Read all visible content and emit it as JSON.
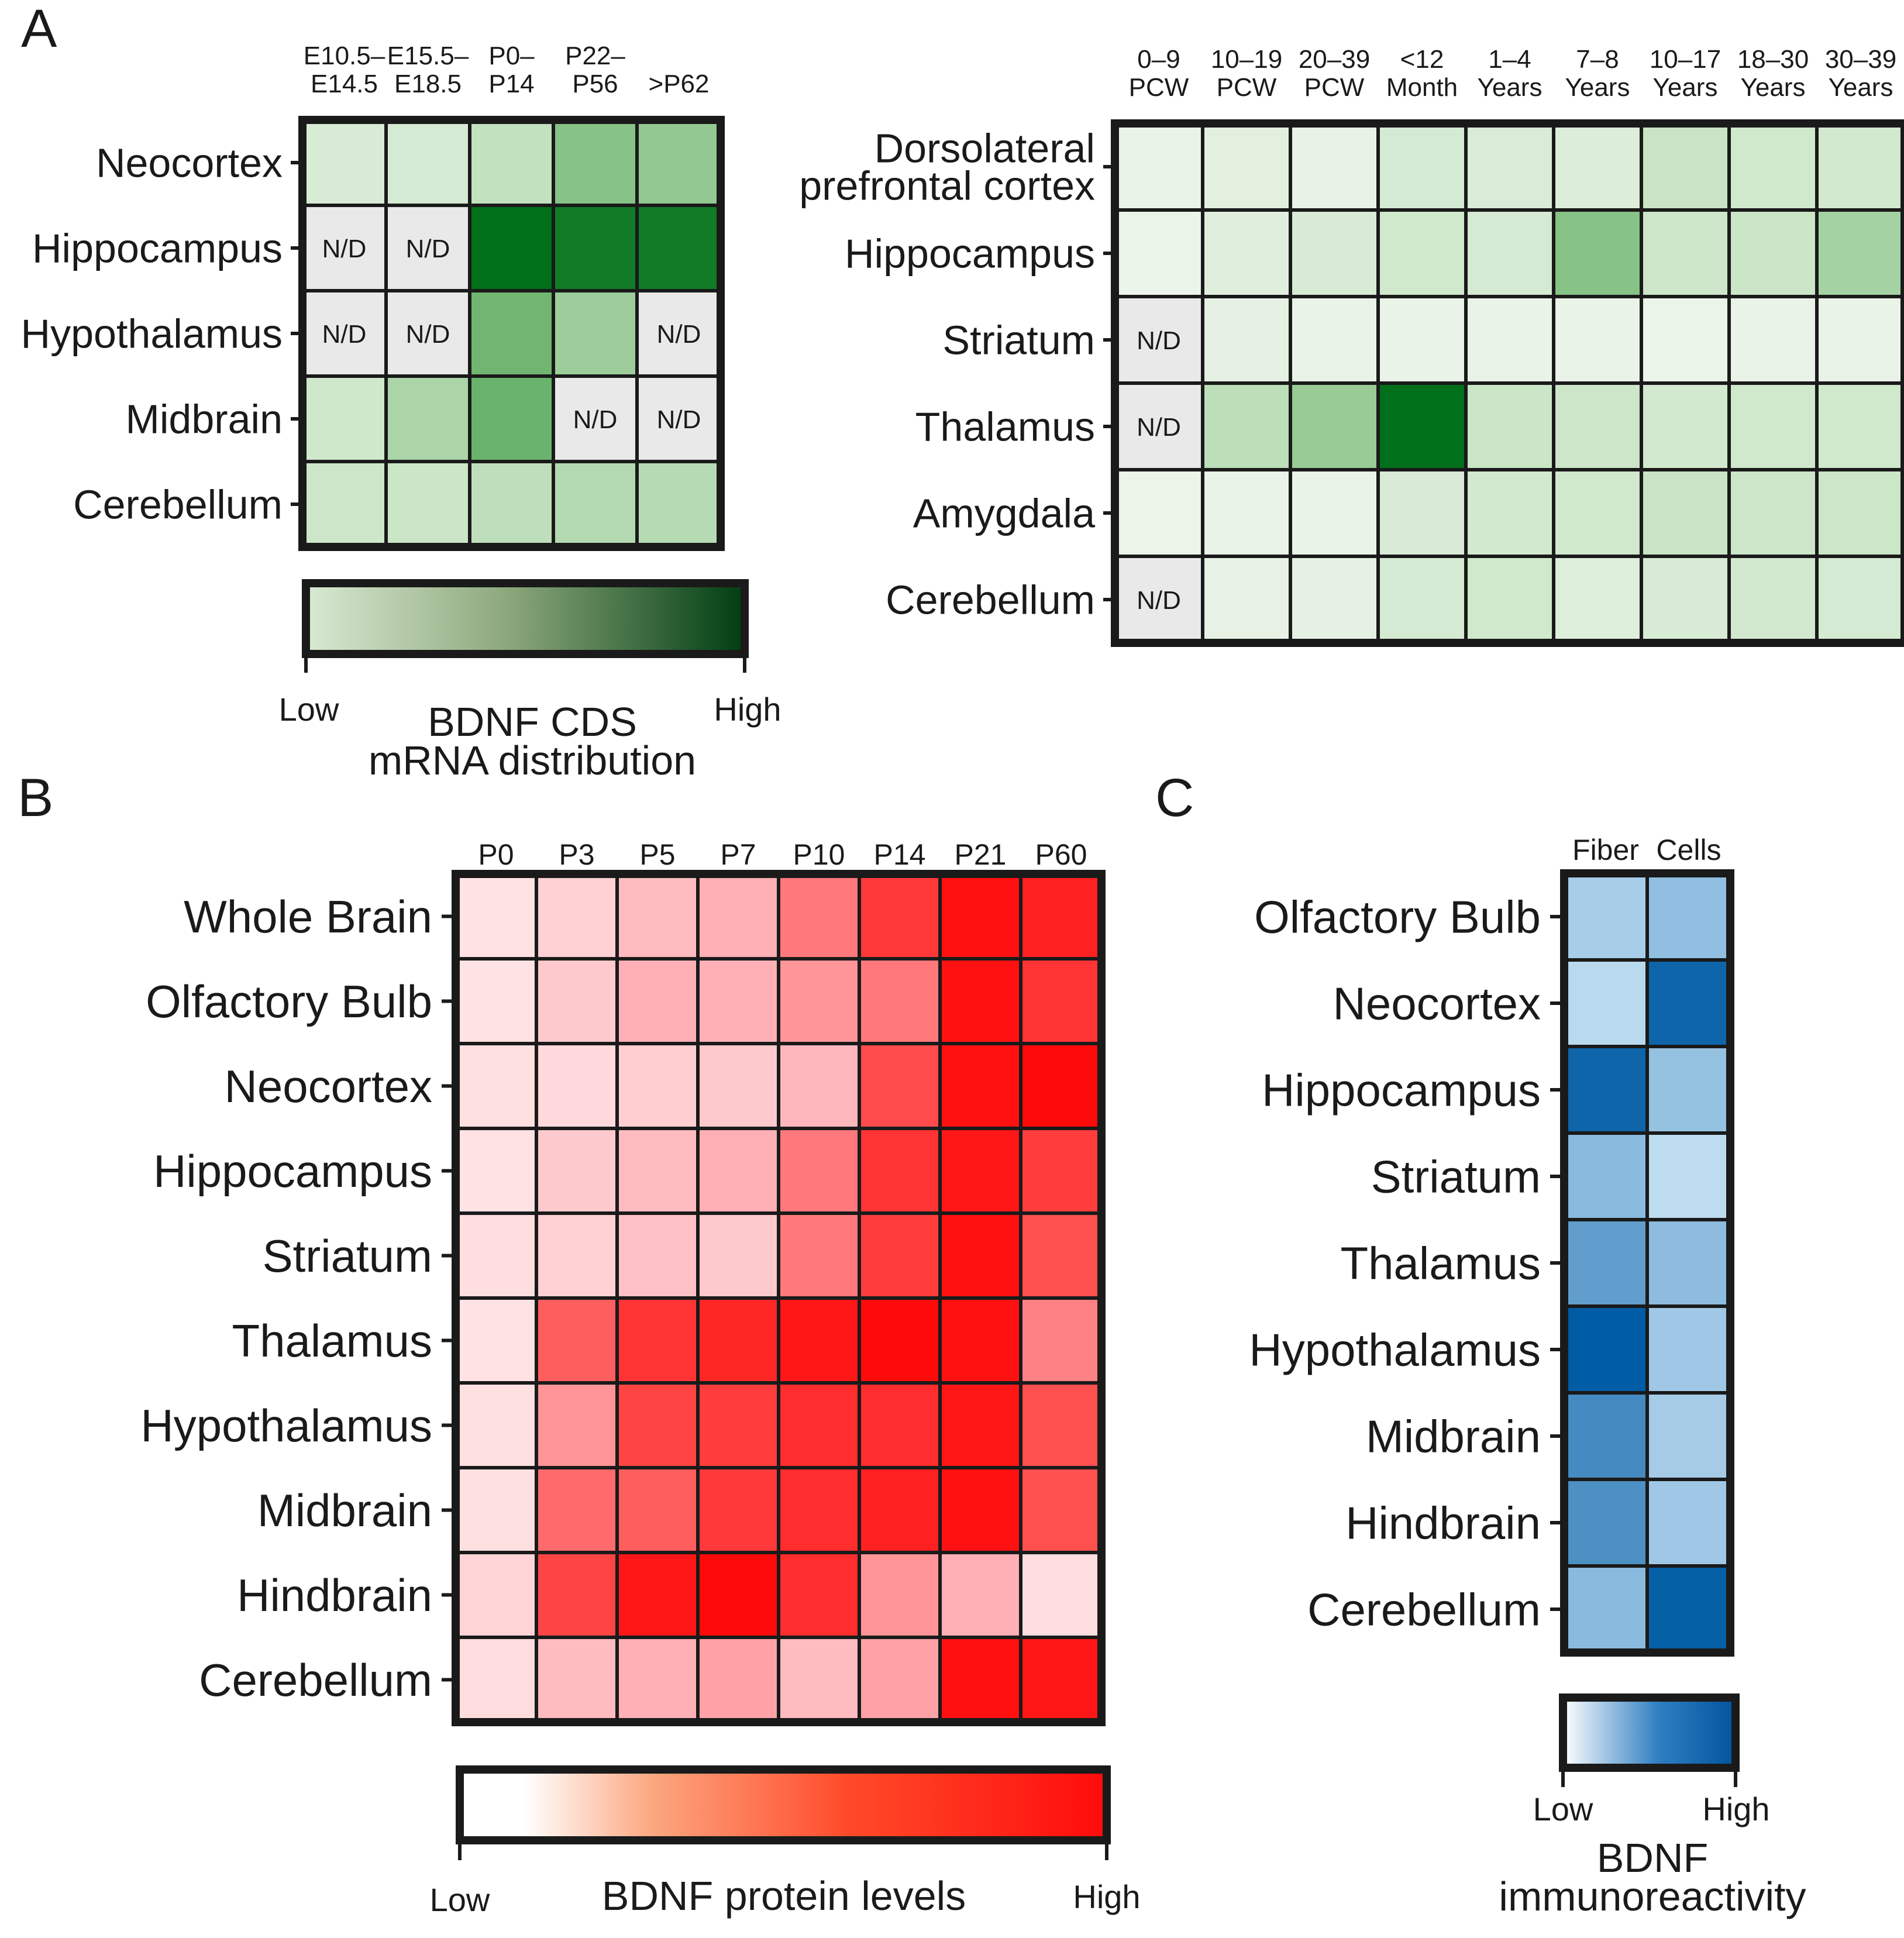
{
  "panel_labels": {
    "a": "A",
    "b": "B",
    "c": "C"
  },
  "nd_label": "N/D",
  "chart_data": [
    {
      "id": "A_mouse",
      "type": "heatmap",
      "title": "",
      "columns": [
        "E10.5–\nE14.5",
        "E15.5–\nE18.5",
        "P0–\nP14",
        "P22–\nP56",
        ">P62"
      ],
      "rows": [
        "Neocortex",
        "Hippocampus",
        "Hypothalamus",
        "Midbrain",
        "Cerebellum"
      ],
      "values": [
        [
          0.18,
          0.2,
          0.32,
          0.52,
          0.48
        ],
        [
          null,
          null,
          1.0,
          0.94,
          0.94
        ],
        [
          null,
          null,
          0.6,
          0.45,
          null
        ],
        [
          0.25,
          0.4,
          0.62,
          null,
          null
        ],
        [
          0.27,
          0.28,
          0.33,
          0.37,
          0.36
        ]
      ],
      "scale": [
        0,
        1
      ],
      "palette": "green"
    },
    {
      "id": "A_human",
      "type": "heatmap",
      "title": "",
      "columns": [
        "0–9\nPCW",
        "10–19\nPCW",
        "20–39\nPCW",
        "<12\nMonth",
        "1–4\nYears",
        "7–8\nYears",
        "10–17\nYears",
        "18–30\nYears",
        "30–39\nYears"
      ],
      "rows": [
        "Dorsolateral\nprefrontal cortex",
        "Hippocampus",
        "Striatum",
        "Thalamus",
        "Amygdala",
        "Cerebellum"
      ],
      "values": [
        [
          0.05,
          0.1,
          0.06,
          0.2,
          0.17,
          0.15,
          0.3,
          0.24,
          0.22
        ],
        [
          0.04,
          0.12,
          0.18,
          0.24,
          0.2,
          0.52,
          0.26,
          0.28,
          0.42
        ],
        [
          null,
          0.08,
          0.05,
          0.05,
          0.05,
          0.05,
          0.04,
          0.05,
          0.05
        ],
        [
          null,
          0.34,
          0.46,
          1.0,
          0.28,
          0.26,
          0.22,
          0.24,
          0.24
        ],
        [
          0.03,
          0.05,
          0.05,
          0.18,
          0.22,
          0.24,
          0.3,
          0.26,
          0.27
        ],
        [
          null,
          0.07,
          0.08,
          0.2,
          0.24,
          0.14,
          0.18,
          0.22,
          0.2
        ]
      ],
      "scale": [
        0,
        1
      ],
      "palette": "green"
    },
    {
      "id": "A_colorbar",
      "type": "colorbar",
      "low_label": "Low",
      "high_label": "High",
      "title": "BDNF CDS\nmRNA distribution"
    },
    {
      "id": "B",
      "type": "heatmap",
      "title": "",
      "columns": [
        "P0",
        "P3",
        "P5",
        "P7",
        "P10",
        "P14",
        "P21",
        "P60"
      ],
      "rows": [
        "Whole Brain",
        "Olfactory Bulb",
        "Neocortex",
        "Hippocampus",
        "Striatum",
        "Thalamus",
        "Hypothalamus",
        "Midbrain",
        "Hindbrain",
        "Cerebellum"
      ],
      "values": [
        [
          0.05,
          0.15,
          0.28,
          0.35,
          0.55,
          0.8,
          0.97,
          0.9
        ],
        [
          0.05,
          0.2,
          0.35,
          0.35,
          0.45,
          0.55,
          0.97,
          0.82
        ],
        [
          0.06,
          0.1,
          0.17,
          0.2,
          0.3,
          0.72,
          0.97,
          1.0
        ],
        [
          0.05,
          0.2,
          0.28,
          0.35,
          0.55,
          0.82,
          0.95,
          0.78
        ],
        [
          0.07,
          0.15,
          0.25,
          0.2,
          0.55,
          0.78,
          0.97,
          0.7
        ],
        [
          0.05,
          0.65,
          0.82,
          0.88,
          0.95,
          1.0,
          0.97,
          0.52
        ],
        [
          0.06,
          0.45,
          0.75,
          0.78,
          0.85,
          0.85,
          0.95,
          0.7
        ],
        [
          0.06,
          0.6,
          0.65,
          0.8,
          0.85,
          0.9,
          0.97,
          0.7
        ],
        [
          0.13,
          0.75,
          0.95,
          1.0,
          0.85,
          0.45,
          0.35,
          0.07
        ],
        [
          0.08,
          0.28,
          0.35,
          0.4,
          0.28,
          0.4,
          0.98,
          0.95
        ]
      ],
      "scale": [
        0,
        1
      ],
      "palette": "red"
    },
    {
      "id": "B_colorbar",
      "type": "colorbar",
      "low_label": "Low",
      "high_label": "High",
      "title": "BDNF protein levels"
    },
    {
      "id": "C",
      "type": "heatmap",
      "title": "",
      "columns": [
        "Fiber",
        "Cells"
      ],
      "rows": [
        "Olfactory Bulb",
        "Neocortex",
        "Hippocampus",
        "Striatum",
        "Thalamus",
        "Hypothalamus",
        "Midbrain",
        "Hindbrain",
        "Cerebellum"
      ],
      "values": [
        [
          0.3,
          0.45
        ],
        [
          0.18,
          0.95
        ],
        [
          0.95,
          0.42
        ],
        [
          0.5,
          0.15
        ],
        [
          0.65,
          0.48
        ],
        [
          1.0,
          0.35
        ],
        [
          0.75,
          0.32
        ],
        [
          0.72,
          0.35
        ],
        [
          0.5,
          0.98
        ]
      ],
      "scale": [
        0,
        1
      ],
      "palette": "blue"
    },
    {
      "id": "C_colorbar",
      "type": "colorbar",
      "low_label": "Low",
      "high_label": "High",
      "title": "BDNF\nimmunoreactivity"
    }
  ]
}
